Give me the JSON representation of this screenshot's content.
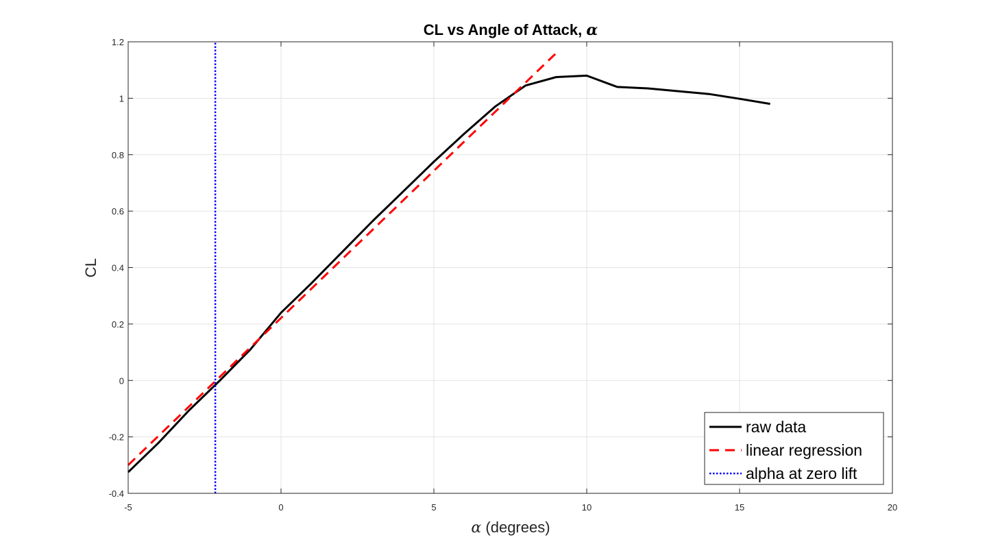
{
  "chart_data": {
    "type": "line",
    "title": "CL vs Angle of Attack, ",
    "title_symbol": "α",
    "xlabel_symbol": "α",
    "xlabel": " (degrees)",
    "ylabel": "CL",
    "xlim": [
      -5,
      20
    ],
    "ylim": [
      -0.4,
      1.2
    ],
    "x_ticks": [
      -5,
      0,
      5,
      10,
      15,
      20
    ],
    "x_tick_labels": [
      "-5",
      "0",
      "5",
      "10",
      "15",
      "20"
    ],
    "y_ticks": [
      -0.4,
      -0.2,
      0,
      0.2,
      0.4,
      0.6,
      0.8,
      1.0,
      1.2
    ],
    "y_tick_labels": [
      "-0.4",
      "-0.2",
      "0",
      "0.2",
      "0.4",
      "0.6",
      "0.8",
      "1",
      "1.2"
    ],
    "grid": true,
    "legend_position": "bottom-right",
    "series": [
      {
        "name": "raw data",
        "style": "solid",
        "color": "#000000",
        "x": [
          -5,
          -4,
          -3,
          -2,
          -1,
          0,
          1,
          2,
          3,
          4,
          5,
          6,
          7,
          8,
          9,
          10,
          11,
          12,
          13,
          14,
          15,
          16
        ],
        "y": [
          -0.325,
          -0.22,
          -0.105,
          0.0,
          0.11,
          0.24,
          0.345,
          0.455,
          0.565,
          0.67,
          0.775,
          0.875,
          0.97,
          1.045,
          1.075,
          1.08,
          1.04,
          1.035,
          1.025,
          1.015,
          0.998,
          0.98
        ]
      },
      {
        "name": "linear regression",
        "style": "dashed",
        "color": "#ff0000",
        "x": [
          -5,
          9
        ],
        "y": [
          -0.3,
          1.16
        ]
      },
      {
        "name": "alpha at zero lift",
        "style": "dotted",
        "color": "#0000ff",
        "x": [
          -2.15,
          -2.15
        ],
        "y": [
          -0.4,
          1.2
        ]
      }
    ]
  }
}
